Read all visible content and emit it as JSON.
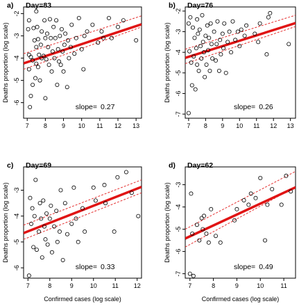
{
  "chart_data": [
    {
      "type": "scatter",
      "panel_label": "a)",
      "title": "Day=83",
      "xlabel": "",
      "ylabel": "Deaths proportion (log scale)",
      "xlim": [
        6.8,
        13.3
      ],
      "ylim": [
        -6.7,
        -1.7
      ],
      "x_ticks": [
        7,
        8,
        9,
        10,
        11,
        12,
        13
      ],
      "y_ticks": [
        -6,
        -5,
        -4,
        -3,
        -2
      ],
      "slope_label": "slope=",
      "slope_value": "0.27",
      "fit": {
        "slope": 0.27,
        "intercept": -6.07
      },
      "ci_upper": [
        [
          6.8,
          -3.8
        ],
        [
          13.3,
          -2.1
        ]
      ],
      "ci_lower": [
        [
          6.8,
          -4.5
        ],
        [
          13.3,
          -2.6
        ]
      ],
      "points": [
        [
          7.05,
          -2.7
        ],
        [
          7.1,
          -2.3
        ],
        [
          7.1,
          -3.85
        ],
        [
          7.1,
          -4.5
        ],
        [
          7.15,
          -6.2
        ],
        [
          7.2,
          -5.7
        ],
        [
          7.2,
          -3.95
        ],
        [
          7.3,
          -5.2
        ],
        [
          7.3,
          -4.1
        ],
        [
          7.35,
          -2.65
        ],
        [
          7.4,
          -3.2
        ],
        [
          7.45,
          -4.9
        ],
        [
          7.5,
          -1.9
        ],
        [
          7.5,
          -3.5
        ],
        [
          7.5,
          -4.25
        ],
        [
          7.55,
          -2.6
        ],
        [
          7.6,
          -3.15
        ],
        [
          7.6,
          -4.4
        ],
        [
          7.65,
          -3.85
        ],
        [
          7.7,
          -5.0
        ],
        [
          7.75,
          -3.4
        ],
        [
          7.8,
          -2.8
        ],
        [
          7.8,
          -4.0
        ],
        [
          7.9,
          -3.9
        ],
        [
          7.95,
          -2.3
        ],
        [
          8.0,
          -5.8
        ],
        [
          8.0,
          -3.1
        ],
        [
          8.05,
          -4.05
        ],
        [
          8.1,
          -2.9
        ],
        [
          8.15,
          -3.5
        ],
        [
          8.2,
          -4.3
        ],
        [
          8.25,
          -2.25
        ],
        [
          8.3,
          -3.1
        ],
        [
          8.35,
          -4.6
        ],
        [
          8.4,
          -3.7
        ],
        [
          8.45,
          -2.6
        ],
        [
          8.5,
          -4.0
        ],
        [
          8.55,
          -3.1
        ],
        [
          8.6,
          -2.3
        ],
        [
          8.65,
          -5.2
        ],
        [
          8.7,
          -3.6
        ],
        [
          8.75,
          -4.15
        ],
        [
          8.8,
          -3.0
        ],
        [
          8.85,
          -4.3
        ],
        [
          8.9,
          -2.7
        ],
        [
          8.95,
          -3.7
        ],
        [
          9.0,
          -4.6
        ],
        [
          9.05,
          -3.4
        ],
        [
          9.1,
          -2.9
        ],
        [
          9.2,
          -5.3
        ],
        [
          9.25,
          -3.2
        ],
        [
          9.3,
          -4.0
        ],
        [
          9.4,
          -3.5
        ],
        [
          9.45,
          -2.5
        ],
        [
          9.6,
          -3.8
        ],
        [
          9.7,
          -3.1
        ],
        [
          9.85,
          -2.2
        ],
        [
          10.0,
          -3.6
        ],
        [
          10.1,
          -4.5
        ],
        [
          10.15,
          -3.0
        ],
        [
          10.3,
          -2.8
        ],
        [
          10.6,
          -2.5
        ],
        [
          10.9,
          -3.3
        ],
        [
          11.1,
          -2.8
        ],
        [
          11.2,
          -3.1
        ],
        [
          11.5,
          -2.2
        ],
        [
          11.65,
          -3.1
        ],
        [
          12.0,
          -2.6
        ],
        [
          12.3,
          -2.3
        ],
        [
          13.0,
          -3.2
        ]
      ]
    },
    {
      "type": "scatter",
      "panel_label": "b)",
      "title": "Day=76",
      "xlabel": "",
      "ylabel": "Deaths proportion (log scale)",
      "xlim": [
        6.8,
        13.3
      ],
      "ylim": [
        -7.2,
        -1.8
      ],
      "x_ticks": [
        7,
        8,
        9,
        10,
        11,
        12,
        13
      ],
      "y_ticks": [
        -7,
        -6,
        -5,
        -4,
        -3,
        -2
      ],
      "slope_label": "slope=",
      "slope_value": "0.26",
      "fit": {
        "slope": 0.26,
        "intercept": -6.04
      },
      "ci_upper": [
        [
          6.8,
          -3.85
        ],
        [
          13.3,
          -2.2
        ]
      ],
      "ci_lower": [
        [
          6.8,
          -4.55
        ],
        [
          13.3,
          -2.75
        ]
      ],
      "points": [
        [
          7.0,
          -6.95
        ],
        [
          7.0,
          -2.6
        ],
        [
          7.05,
          -3.95
        ],
        [
          7.1,
          -2.3
        ],
        [
          7.15,
          -4.5
        ],
        [
          7.2,
          -5.6
        ],
        [
          7.25,
          -2.8
        ],
        [
          7.3,
          -4.2
        ],
        [
          7.35,
          -3.3
        ],
        [
          7.4,
          -5.8
        ],
        [
          7.45,
          -3.8
        ],
        [
          7.5,
          -4.6
        ],
        [
          7.5,
          -2.4
        ],
        [
          7.55,
          -3.1
        ],
        [
          7.6,
          -4.9
        ],
        [
          7.65,
          -2.9
        ],
        [
          7.7,
          -3.7
        ],
        [
          7.75,
          -4.3
        ],
        [
          7.8,
          -2.2
        ],
        [
          7.85,
          -3.5
        ],
        [
          7.9,
          -4.0
        ],
        [
          7.95,
          -5.2
        ],
        [
          8.0,
          -3.2
        ],
        [
          8.05,
          -4.6
        ],
        [
          8.1,
          -2.7
        ],
        [
          8.15,
          -3.9
        ],
        [
          8.2,
          -3.3
        ],
        [
          8.25,
          -4.9
        ],
        [
          8.3,
          -2.6
        ],
        [
          8.35,
          -3.6
        ],
        [
          8.4,
          -4.3
        ],
        [
          8.5,
          -3.0
        ],
        [
          8.6,
          -4.4
        ],
        [
          8.65,
          -3.6
        ],
        [
          8.7,
          -2.5
        ],
        [
          8.8,
          -4.9
        ],
        [
          8.85,
          -3.4
        ],
        [
          8.9,
          -4.1
        ],
        [
          9.0,
          -3.1
        ],
        [
          9.05,
          -3.8
        ],
        [
          9.1,
          -2.6
        ],
        [
          9.2,
          -5.0
        ],
        [
          9.3,
          -3.5
        ],
        [
          9.4,
          -3.0
        ],
        [
          9.5,
          -4.0
        ],
        [
          9.6,
          -2.5
        ],
        [
          9.75,
          -3.4
        ],
        [
          9.9,
          -3.0
        ],
        [
          10.0,
          -3.7
        ],
        [
          10.1,
          -2.9
        ],
        [
          10.3,
          -3.2
        ],
        [
          10.4,
          -2.7
        ],
        [
          10.9,
          -3.1
        ],
        [
          11.1,
          -3.5
        ],
        [
          11.2,
          -2.6
        ],
        [
          11.6,
          -4.1
        ],
        [
          11.7,
          -2.3
        ],
        [
          11.8,
          -2.1
        ],
        [
          12.9,
          -3.6
        ]
      ]
    },
    {
      "type": "scatter",
      "panel_label": "c)",
      "title": "Day=69",
      "xlabel": "Confirmed cases (log scale)",
      "ylabel": "Deaths proportion (log scale)",
      "xlim": [
        6.8,
        12.2
      ],
      "ylim": [
        -6.4,
        -2.1
      ],
      "x_ticks": [
        7,
        8,
        9,
        10,
        11,
        12
      ],
      "y_ticks": [
        -6,
        -5,
        -4,
        -3
      ],
      "slope_label": "slope=",
      "slope_value": "0.33",
      "fit": {
        "slope": 0.33,
        "intercept": -6.9
      },
      "ci_upper": [
        [
          6.8,
          -4.35
        ],
        [
          12.2,
          -2.6
        ]
      ],
      "ci_lower": [
        [
          6.8,
          -4.9
        ],
        [
          12.2,
          -3.1
        ]
      ],
      "points": [
        [
          7.05,
          -6.3
        ],
        [
          7.1,
          -3.3
        ],
        [
          7.15,
          -4.3
        ],
        [
          7.2,
          -3.7
        ],
        [
          7.25,
          -5.2
        ],
        [
          7.3,
          -4.0
        ],
        [
          7.35,
          -2.6
        ],
        [
          7.4,
          -5.3
        ],
        [
          7.5,
          -4.6
        ],
        [
          7.55,
          -3.5
        ],
        [
          7.6,
          -4.1
        ],
        [
          7.65,
          -5.6
        ],
        [
          7.7,
          -3.4
        ],
        [
          7.75,
          -4.4
        ],
        [
          7.8,
          -4.9
        ],
        [
          7.85,
          -3.9
        ],
        [
          7.9,
          -5.1
        ],
        [
          8.0,
          -4.1
        ],
        [
          8.05,
          -3.6
        ],
        [
          8.1,
          -5.4
        ],
        [
          8.2,
          -4.4
        ],
        [
          8.3,
          -3.8
        ],
        [
          8.35,
          -5.0
        ],
        [
          8.45,
          -4.6
        ],
        [
          8.5,
          -3.0
        ],
        [
          8.6,
          -5.7
        ],
        [
          8.7,
          -3.5
        ],
        [
          8.8,
          -4.7
        ],
        [
          9.0,
          -4.3
        ],
        [
          9.1,
          -2.9
        ],
        [
          9.2,
          -4.1
        ],
        [
          9.3,
          -5.0
        ],
        [
          9.5,
          -3.7
        ],
        [
          9.6,
          -4.6
        ],
        [
          10.0,
          -2.9
        ],
        [
          10.1,
          -3.4
        ],
        [
          10.5,
          -2.8
        ],
        [
          10.55,
          -3.5
        ],
        [
          10.95,
          -4.6
        ],
        [
          11.1,
          -2.5
        ],
        [
          11.5,
          -2.3
        ],
        [
          11.75,
          -3.1
        ],
        [
          12.05,
          -4.0
        ]
      ]
    },
    {
      "type": "scatter",
      "panel_label": "d)",
      "title": "Day=62",
      "xlabel": "Confirmed cases (log scale)",
      "ylabel": "Deaths proportion (log scale)",
      "xlim": [
        6.8,
        11.5
      ],
      "ylim": [
        -7.2,
        -2.2
      ],
      "x_ticks": [
        7,
        8,
        9,
        10,
        11
      ],
      "y_ticks": [
        -7,
        -6,
        -5,
        -4,
        -3
      ],
      "slope_label": "slope=",
      "slope_value": "0.49",
      "fit": {
        "slope": 0.49,
        "intercept": -8.75
      },
      "ci_upper": [
        [
          6.8,
          -5.0
        ],
        [
          11.5,
          -2.4
        ]
      ],
      "ci_lower": [
        [
          6.8,
          -5.8
        ],
        [
          11.5,
          -3.1
        ]
      ],
      "points": [
        [
          7.0,
          -7.0
        ],
        [
          7.05,
          -3.4
        ],
        [
          7.1,
          -5.2
        ],
        [
          7.15,
          -7.1
        ],
        [
          7.3,
          -4.8
        ],
        [
          7.4,
          -5.5
        ],
        [
          7.5,
          -4.5
        ],
        [
          7.55,
          -5.0
        ],
        [
          7.6,
          -4.4
        ],
        [
          7.7,
          -5.2
        ],
        [
          7.8,
          -5.6
        ],
        [
          7.9,
          -4.1
        ],
        [
          8.1,
          -5.3
        ],
        [
          8.3,
          -5.6
        ],
        [
          8.9,
          -4.6
        ],
        [
          9.0,
          -4.1
        ],
        [
          9.3,
          -3.7
        ],
        [
          9.5,
          -3.9
        ],
        [
          9.6,
          -3.4
        ],
        [
          9.8,
          -3.6
        ],
        [
          10.0,
          -2.7
        ],
        [
          10.2,
          -5.5
        ],
        [
          10.3,
          -3.9
        ],
        [
          10.5,
          -3.2
        ],
        [
          10.9,
          -3.9
        ],
        [
          11.1,
          -2.6
        ],
        [
          11.3,
          -3.3
        ]
      ]
    }
  ]
}
